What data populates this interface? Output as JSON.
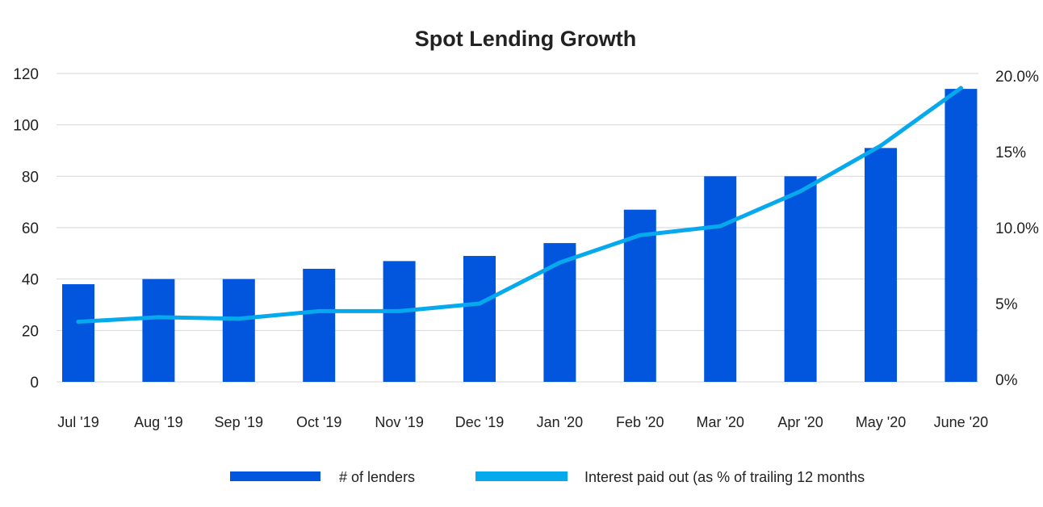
{
  "chart_data": {
    "type": "bar+line",
    "title": "Spot Lending Growth",
    "categories": [
      "Jul '19",
      "Aug '19",
      "Sep '19",
      "Oct '19",
      "Nov '19",
      "Dec '19",
      "Jan '20",
      "Feb '20",
      "Mar '20",
      "Apr '20",
      "May '20",
      "June '20"
    ],
    "series": [
      {
        "name": "# of lenders",
        "type": "bar",
        "axis": "left",
        "color": "#0256DE",
        "values": [
          38,
          40,
          40,
          44,
          47,
          49,
          54,
          67,
          80,
          80,
          91,
          114
        ]
      },
      {
        "name": "Interest paid out (as % of trailing 12 months",
        "type": "line",
        "axis": "right",
        "color": "#05A9EC",
        "values": [
          3.8,
          4.1,
          4.0,
          4.5,
          4.5,
          5.0,
          7.7,
          9.5,
          10.1,
          12.4,
          15.4,
          19.2
        ]
      }
    ],
    "left_axis": {
      "ylim": [
        0,
        120
      ],
      "ticks": [
        "0",
        "20",
        "40",
        "60",
        "80",
        "100",
        "120"
      ]
    },
    "right_axis": {
      "ylim": [
        0,
        20
      ],
      "ticks": [
        "0%",
        "5%",
        "10.0%",
        "15%",
        "20.0%"
      ]
    },
    "grid": true,
    "legend_position": "bottom"
  }
}
